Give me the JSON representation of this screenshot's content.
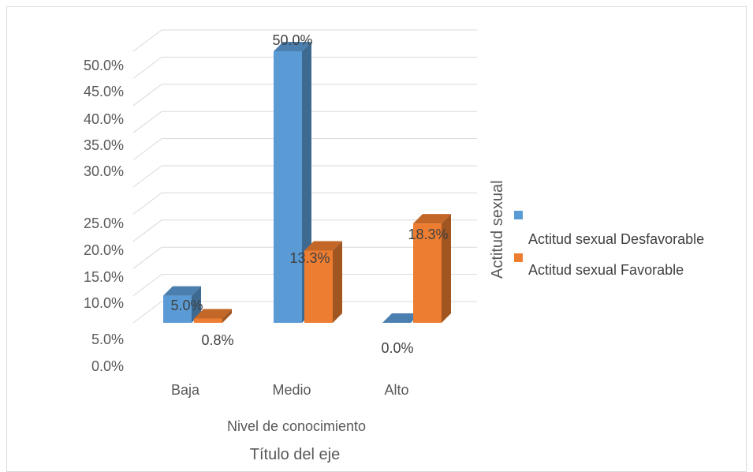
{
  "chart_data": {
    "type": "bar",
    "view": "3d-clustered-column",
    "categories": [
      "Baja",
      "Medio",
      "Alto"
    ],
    "series": [
      {
        "name": "Actitud sexual Desfavorable",
        "values": [
          5.0,
          50.0,
          0.0
        ],
        "labels": [
          "5.0%",
          "50.0%",
          "0.0%"
        ],
        "color": "#5b9bd5"
      },
      {
        "name": "Actitud sexual Favorable",
        "values": [
          0.8,
          13.3,
          18.3
        ],
        "labels": [
          "0.8%",
          "13.3%",
          "18.3%"
        ],
        "color": "#ed7d31"
      }
    ],
    "y_tick_labels": [
      "0.0%",
      "5.0%",
      "10.0%",
      "15.0%",
      "20.0%",
      "25.0%",
      "30.0%",
      "35.0%",
      "40.0%",
      "45.0%",
      "50.0%"
    ],
    "ylim": [
      0,
      50
    ],
    "xlabel": "Nivel de conocimiento",
    "xlabel_secondary": "Título del eje",
    "legend_title": "Actitud sexual",
    "legend_position": "right",
    "grid": true
  }
}
